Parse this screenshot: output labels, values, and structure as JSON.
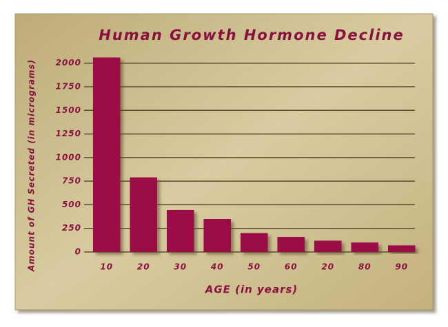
{
  "chart_data": {
    "type": "bar",
    "title": "Human Growth Hormone Decline",
    "x_label": "AGE (in years)",
    "y_label": "Amount of GH Secreted (in micrograms)",
    "categories": [
      "10",
      "20",
      "30",
      "40",
      "50",
      "60",
      "20",
      "80",
      "90"
    ],
    "values": [
      2060,
      790,
      445,
      350,
      200,
      160,
      120,
      100,
      70
    ],
    "color": "#9b1047",
    "ylim": [
      0,
      2100
    ],
    "yticks": [
      0,
      250,
      500,
      750,
      1000,
      1250,
      1500,
      1750,
      2000
    ],
    "grid": true
  }
}
